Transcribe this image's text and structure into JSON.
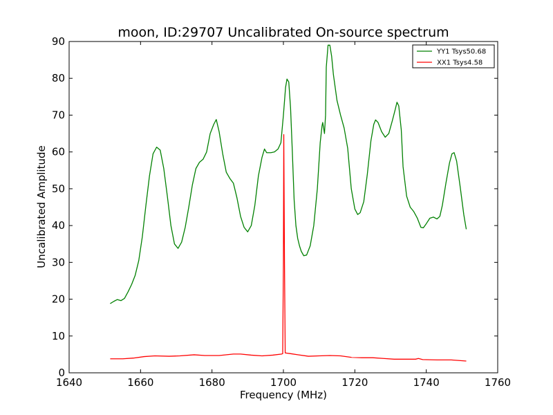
{
  "chart_data": {
    "type": "line",
    "title": "moon, ID:29707 Uncalibrated On-source spectrum",
    "xlabel": "Frequency (MHz)",
    "ylabel": "Uncalibrated Amplitude",
    "xlim": [
      1640,
      1760
    ],
    "ylim": [
      0,
      90
    ],
    "xticks": [
      1640,
      1660,
      1680,
      1700,
      1720,
      1740,
      1760
    ],
    "yticks": [
      0,
      10,
      20,
      30,
      40,
      50,
      60,
      70,
      80,
      90
    ],
    "grid": false,
    "legend": "top-right",
    "series": [
      {
        "name": "YY1 Tsys50.68",
        "color": "#008000",
        "points": [
          [
            1651.5,
            18.8
          ],
          [
            1652.5,
            19.4
          ],
          [
            1653.5,
            19.9
          ],
          [
            1654.5,
            19.6
          ],
          [
            1655.5,
            20.2
          ],
          [
            1656.5,
            22.0
          ],
          [
            1657.5,
            24.0
          ],
          [
            1658.5,
            26.5
          ],
          [
            1659.5,
            30.5
          ],
          [
            1660.5,
            37.0
          ],
          [
            1661.5,
            45.5
          ],
          [
            1662.5,
            53.5
          ],
          [
            1663.5,
            59.5
          ],
          [
            1664.5,
            61.3
          ],
          [
            1665.5,
            60.5
          ],
          [
            1666.5,
            55.5
          ],
          [
            1667.5,
            48.0
          ],
          [
            1668.5,
            40.0
          ],
          [
            1669.5,
            35.0
          ],
          [
            1670.5,
            33.8
          ],
          [
            1671.5,
            35.5
          ],
          [
            1672.5,
            39.5
          ],
          [
            1673.5,
            45.0
          ],
          [
            1674.5,
            51.0
          ],
          [
            1675.5,
            55.5
          ],
          [
            1676.5,
            57.2
          ],
          [
            1677.5,
            58.0
          ],
          [
            1678.5,
            60.0
          ],
          [
            1679.5,
            65.0
          ],
          [
            1680.5,
            67.5
          ],
          [
            1681.2,
            68.8
          ],
          [
            1682.0,
            65.5
          ],
          [
            1683.0,
            59.5
          ],
          [
            1684.0,
            54.5
          ],
          [
            1685.0,
            52.8
          ],
          [
            1686.0,
            51.5
          ],
          [
            1687.0,
            47.5
          ],
          [
            1688.0,
            42.5
          ],
          [
            1689.0,
            39.5
          ],
          [
            1690.0,
            38.3
          ],
          [
            1691.0,
            40.0
          ],
          [
            1692.0,
            45.5
          ],
          [
            1693.0,
            53.5
          ],
          [
            1694.0,
            58.5
          ],
          [
            1694.7,
            60.8
          ],
          [
            1695.3,
            59.8
          ],
          [
            1696.5,
            59.8
          ],
          [
            1697.5,
            60.0
          ],
          [
            1698.5,
            60.8
          ],
          [
            1699.3,
            62.5
          ],
          [
            1700.0,
            70.0
          ],
          [
            1700.6,
            77.5
          ],
          [
            1701.0,
            79.8
          ],
          [
            1701.5,
            79.0
          ],
          [
            1702.0,
            72.0
          ],
          [
            1702.5,
            60.0
          ],
          [
            1703.0,
            47.0
          ],
          [
            1703.5,
            40.0
          ],
          [
            1704.0,
            36.5
          ],
          [
            1704.5,
            34.5
          ],
          [
            1705.0,
            33.0
          ],
          [
            1705.7,
            31.8
          ],
          [
            1706.5,
            32.0
          ],
          [
            1707.5,
            34.5
          ],
          [
            1708.5,
            40.0
          ],
          [
            1709.5,
            50.0
          ],
          [
            1710.3,
            62.5
          ],
          [
            1710.8,
            67.0
          ],
          [
            1711.0,
            68.0
          ],
          [
            1711.5,
            65.0
          ],
          [
            1711.8,
            70.0
          ],
          [
            1712.0,
            83.0
          ],
          [
            1712.5,
            89.0
          ],
          [
            1713.0,
            89.0
          ],
          [
            1713.5,
            86.0
          ],
          [
            1714.0,
            81.0
          ],
          [
            1715.0,
            74.0
          ],
          [
            1716.0,
            70.0
          ],
          [
            1717.0,
            66.5
          ],
          [
            1718.0,
            61.0
          ],
          [
            1719.0,
            50.0
          ],
          [
            1720.0,
            44.5
          ],
          [
            1720.8,
            43.0
          ],
          [
            1721.5,
            43.5
          ],
          [
            1722.5,
            46.5
          ],
          [
            1723.5,
            54.0
          ],
          [
            1724.5,
            63.0
          ],
          [
            1725.3,
            67.5
          ],
          [
            1725.8,
            68.7
          ],
          [
            1726.5,
            68.0
          ],
          [
            1727.5,
            65.5
          ],
          [
            1728.5,
            64.0
          ],
          [
            1729.5,
            65.0
          ],
          [
            1730.5,
            68.5
          ],
          [
            1731.3,
            71.5
          ],
          [
            1731.8,
            73.5
          ],
          [
            1732.3,
            72.5
          ],
          [
            1733.0,
            66.0
          ],
          [
            1733.5,
            56.0
          ],
          [
            1734.5,
            48.0
          ],
          [
            1735.5,
            45.0
          ],
          [
            1736.5,
            43.8
          ],
          [
            1737.5,
            42.0
          ],
          [
            1738.5,
            39.5
          ],
          [
            1739.2,
            39.4
          ],
          [
            1740.0,
            40.5
          ],
          [
            1741.0,
            42.0
          ],
          [
            1742.0,
            42.3
          ],
          [
            1743.0,
            41.8
          ],
          [
            1743.8,
            42.5
          ],
          [
            1744.5,
            45.5
          ],
          [
            1745.5,
            51.5
          ],
          [
            1746.5,
            57.0
          ],
          [
            1747.2,
            59.5
          ],
          [
            1747.8,
            59.8
          ],
          [
            1748.5,
            57.5
          ],
          [
            1749.5,
            50.5
          ],
          [
            1750.5,
            43.0
          ],
          [
            1751.2,
            39.0
          ]
        ]
      },
      {
        "name": "XX1 Tsys4.58",
        "color": "#ff0000",
        "points": [
          [
            1651.5,
            3.8
          ],
          [
            1655.0,
            3.8
          ],
          [
            1658.0,
            4.0
          ],
          [
            1661.0,
            4.4
          ],
          [
            1664.0,
            4.6
          ],
          [
            1668.0,
            4.5
          ],
          [
            1671.0,
            4.6
          ],
          [
            1675.0,
            4.9
          ],
          [
            1678.0,
            4.7
          ],
          [
            1682.0,
            4.7
          ],
          [
            1686.0,
            5.1
          ],
          [
            1688.0,
            5.1
          ],
          [
            1691.0,
            4.8
          ],
          [
            1694.0,
            4.6
          ],
          [
            1697.0,
            4.8
          ],
          [
            1699.5,
            5.1
          ],
          [
            1699.8,
            5.2
          ],
          [
            1700.0,
            30.0
          ],
          [
            1700.1,
            64.7
          ],
          [
            1700.3,
            30.0
          ],
          [
            1700.5,
            5.4
          ],
          [
            1702.0,
            5.2
          ],
          [
            1704.0,
            4.9
          ],
          [
            1707.0,
            4.5
          ],
          [
            1710.0,
            4.6
          ],
          [
            1713.0,
            4.7
          ],
          [
            1716.0,
            4.6
          ],
          [
            1719.0,
            4.2
          ],
          [
            1722.0,
            4.1
          ],
          [
            1725.0,
            4.1
          ],
          [
            1728.0,
            3.9
          ],
          [
            1731.0,
            3.7
          ],
          [
            1734.0,
            3.7
          ],
          [
            1737.0,
            3.7
          ],
          [
            1737.8,
            3.9
          ],
          [
            1739.0,
            3.6
          ],
          [
            1743.0,
            3.5
          ],
          [
            1747.0,
            3.5
          ],
          [
            1751.2,
            3.2
          ]
        ]
      }
    ]
  }
}
